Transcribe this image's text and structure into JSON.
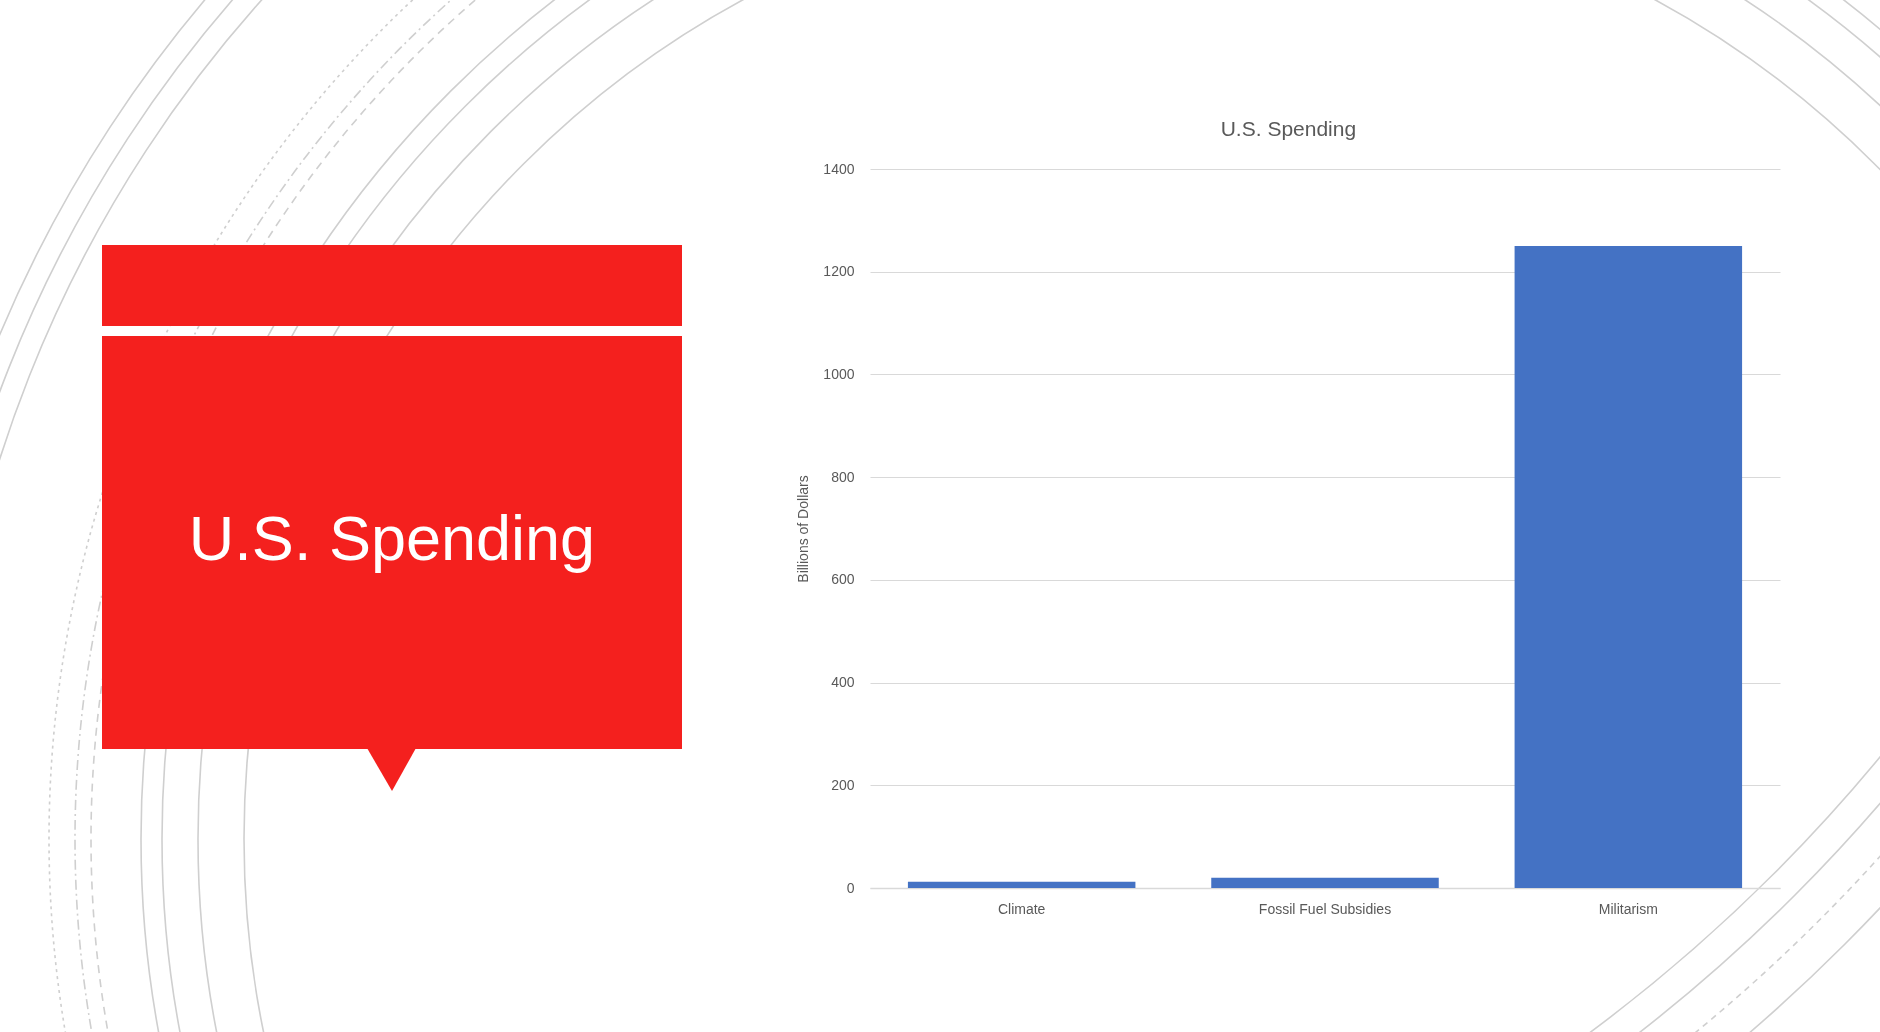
{
  "chart_data": {
    "type": "bar",
    "title": "U.S. Spending",
    "ylabel": "Billions of Dollars",
    "categories": [
      "Climate",
      "Fossil Fuel Subsidies",
      "Militarism"
    ],
    "values": [
      12,
      20,
      1250
    ],
    "color": "#4472c4",
    "ylim": [
      0,
      1400
    ],
    "yticks": [
      0,
      200,
      400,
      600,
      800,
      1000,
      1200,
      1400
    ],
    "grid": "y",
    "annotations": [
      "U.S. Spending"
    ]
  }
}
